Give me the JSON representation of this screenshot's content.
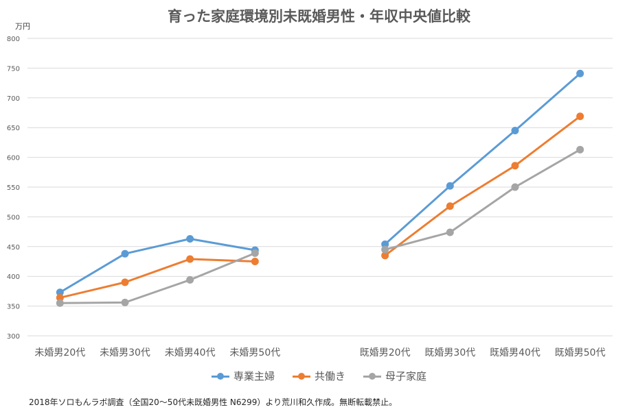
{
  "chart_data": {
    "type": "line",
    "title": "育った家庭環境別未既婚男性・年収中央値比較",
    "ylabel": "万円",
    "xlabel": "",
    "ylim": [
      300,
      800
    ],
    "yticks": [
      300,
      350,
      400,
      450,
      500,
      550,
      600,
      650,
      700,
      750,
      800
    ],
    "grid": true,
    "legend_position": "bottom",
    "categories": [
      "未婚男20代",
      "未婚男30代",
      "未婚男40代",
      "未婚男50代",
      "",
      "既婚男20代",
      "既婚男30代",
      "既婚男40代",
      "既婚男50代"
    ],
    "series": [
      {
        "name": "専業主婦",
        "color": "#5b9bd5",
        "values": [
          373,
          438,
          463,
          444,
          null,
          454,
          552,
          645,
          741
        ]
      },
      {
        "name": "共働き",
        "color": "#ed7d31",
        "values": [
          364,
          390,
          429,
          425,
          null,
          435,
          518,
          586,
          669
        ]
      },
      {
        "name": "母子家庭",
        "color": "#a5a5a5",
        "values": [
          355,
          356,
          394,
          439,
          null,
          445,
          474,
          550,
          613
        ]
      }
    ]
  },
  "footnote": "2018年ソロもんラボ調査（全国20～50代未既婚男性 N6299）より荒川和久作成。無断転載禁止。"
}
